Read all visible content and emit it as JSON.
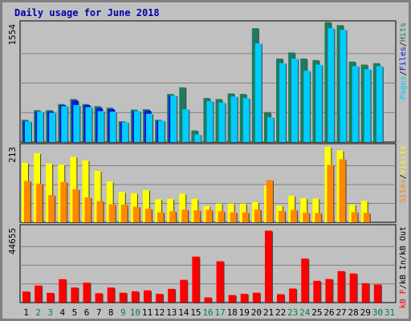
{
  "chart_data": {
    "type": "bar",
    "title": "Daily usage for June 2018",
    "categories": [
      "1",
      "2",
      "3",
      "4",
      "5",
      "6",
      "7",
      "8",
      "9",
      "10",
      "11",
      "12",
      "13",
      "14",
      "15",
      "16",
      "17",
      "18",
      "19",
      "20",
      "21",
      "22",
      "23",
      "24",
      "25",
      "26",
      "27",
      "28",
      "29",
      "30",
      "31"
    ],
    "weekend_days": [
      "2",
      "3",
      "9",
      "10",
      "16",
      "17",
      "23",
      "24",
      "30",
      "31"
    ],
    "panels": [
      {
        "id": "hits-files-pages",
        "max_label": "1554",
        "ymax": 1554,
        "legend": [
          "Pages",
          "/",
          "Files",
          "/",
          "Hits"
        ],
        "series": [
          {
            "name": "Hits",
            "color": "#1e7b5e",
            "values": [
              293,
              420,
              420,
              500,
              567,
              500,
              473,
              453,
              273,
              427,
              433,
              293,
              633,
              720,
              153,
              580,
              567,
              640,
              633,
              1500,
              393,
              1100,
              1180,
              1100,
              1080,
              1580,
              1540,
              1060,
              1020,
              1040,
              0
            ]
          },
          {
            "name": "Files",
            "color": "#1010e0",
            "values": [
              273,
              400,
              400,
              487,
              547,
              487,
              447,
              433,
              260,
              407,
              413,
              280,
              613,
              0,
              0,
              0,
              0,
              0,
              0,
              0,
              0,
              0,
              0,
              0,
              0,
              0,
              0,
              0,
              0,
              0,
              0
            ]
          },
          {
            "name": "Pages",
            "color": "#00ccff",
            "values": [
              273,
              400,
              387,
              473,
              487,
              460,
              407,
              400,
              260,
              407,
              373,
              280,
              613,
              433,
              100,
              540,
              520,
              600,
              580,
              1300,
              327,
              1040,
              1100,
              940,
              1020,
              1500,
              1480,
              1000,
              960,
              1000,
              0
            ]
          }
        ]
      },
      {
        "id": "visits-sites",
        "max_label": "213",
        "ymax": 213,
        "legend": [
          "Sites",
          "/",
          "Visits"
        ],
        "series": [
          {
            "name": "Visits",
            "color": "#ffff00",
            "values": [
              168,
              195,
              166,
              163,
              185,
              175,
              145,
              115,
              86,
              82,
              91,
              65,
              66,
              81,
              66,
              46,
              53,
              53,
              53,
              57,
              105,
              47,
              75,
              68,
              67,
              213,
              203,
              50,
              61,
              0,
              0
            ]
          },
          {
            "name": "Sites",
            "color": "#ff8800",
            "values": [
              117,
              109,
              77,
              114,
              93,
              70,
              60,
              51,
              50,
              44,
              38,
              28,
              31,
              36,
              34,
              35,
              31,
              28,
              28,
              36,
              119,
              32,
              35,
              27,
              26,
              162,
              178,
              29,
              27,
              0,
              0
            ]
          }
        ]
      },
      {
        "id": "kb-traffic",
        "max_label": "44655",
        "ymax": 44655,
        "legend": [
          "kB F",
          "/",
          "kB In",
          "/",
          "kB Out"
        ],
        "series": [
          {
            "name": "kB F",
            "color": "#ff0000",
            "values": [
              6600,
              10200,
              5800,
              14000,
              9000,
              11900,
              5600,
              9000,
              5900,
              6700,
              7300,
              5200,
              8200,
              13600,
              27500,
              3100,
              24700,
              4500,
              5200,
              5900,
              43000,
              5000,
              8400,
              26300,
              13000,
              14100,
              18800,
              17400,
              11600,
              10800,
              0
            ]
          }
        ]
      }
    ],
    "y_axis": "tick max shown per panel",
    "grid": true,
    "legend_placement": "right (vertical)"
  }
}
